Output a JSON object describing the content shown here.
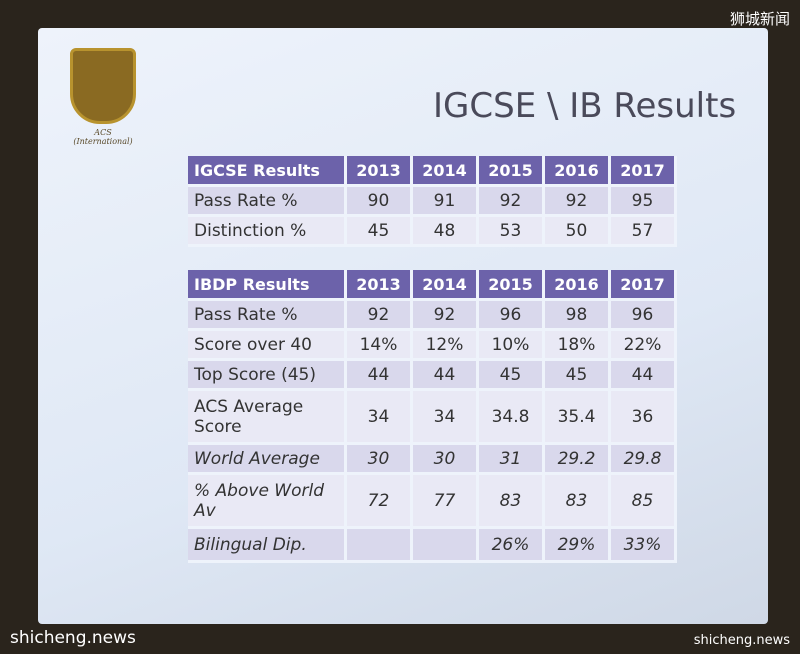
{
  "watermarks": {
    "top_right": "狮城新闻",
    "bottom_left": "shicheng.news",
    "bottom_right": "shicheng.news"
  },
  "slide": {
    "title": "IGCSE \\ IB Results",
    "logo_caption": "ACS (International)"
  },
  "tables": [
    {
      "header": [
        "IGCSE Results",
        "2013",
        "2014",
        "2015",
        "2016",
        "2017"
      ],
      "rows": [
        [
          "Pass Rate %",
          90,
          91,
          92,
          92,
          95
        ],
        [
          "Distinction %",
          45,
          48,
          53,
          50,
          57
        ]
      ]
    },
    {
      "header": [
        "IBDP Results",
        "2013",
        "2014",
        "2015",
        "2016",
        "2017"
      ],
      "rows": [
        [
          "Pass Rate %",
          92,
          92,
          96,
          98,
          96
        ],
        [
          "Score over 40",
          "14%",
          "12%",
          "10%",
          "18%",
          "22%"
        ],
        [
          "Top Score (45)",
          44,
          44,
          45,
          45,
          44
        ],
        [
          "ACS Average Score",
          34,
          34,
          34.8,
          35.4,
          36
        ],
        [
          "World Average",
          30,
          30,
          31,
          29.2,
          29.8
        ],
        [
          "% Above World Av",
          72,
          77,
          83,
          83,
          85
        ],
        [
          "Bilingual Dip.",
          null,
          null,
          "26%",
          "29%",
          "33%"
        ]
      ]
    }
  ]
}
